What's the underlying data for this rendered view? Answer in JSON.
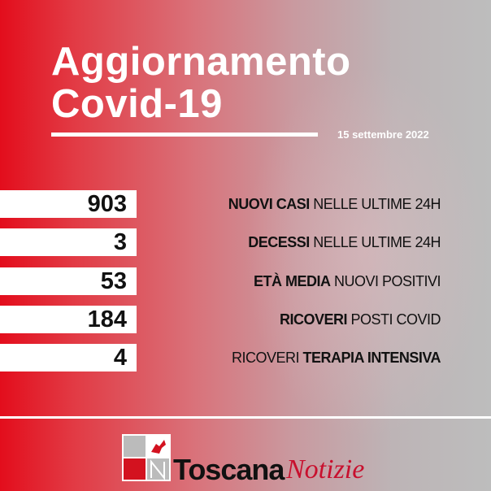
{
  "header": {
    "title_line1": "Aggiornamento",
    "title_line2": "Covid-19",
    "date": "15 settembre 2022"
  },
  "stats": [
    {
      "value": "903",
      "bold": "NUOVI CASI",
      "rest": " NELLE ULTIME 24H"
    },
    {
      "value": "3",
      "bold": "DECESSI",
      "rest": " NELLE ULTIME 24H"
    },
    {
      "value": "53",
      "bold": "ETÀ MEDIA",
      "rest": " NUOVI POSITIVI"
    },
    {
      "value": "184",
      "bold": "RICOVERI",
      "rest": " POSTI COVID"
    },
    {
      "value": "4",
      "pre": "RICOVERI ",
      "bold": "TERAPIA INTENSIVA"
    }
  ],
  "footer": {
    "logo_letters": "TN",
    "brand_bold": "Toscana",
    "brand_italic": "Notizie",
    "brand_color": "#c8102e"
  }
}
